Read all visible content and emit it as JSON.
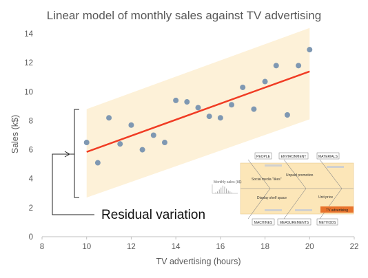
{
  "chart_data": {
    "type": "scatter",
    "title": "Linear model of monthly sales against TV advertising",
    "xlabel": "TV advertising (hours)",
    "ylabel": "Sales (k$)",
    "xlim": [
      8,
      22
    ],
    "ylim": [
      0,
      14
    ],
    "x_ticks": [
      8,
      10,
      12,
      14,
      16,
      18,
      20,
      22
    ],
    "y_ticks": [
      0,
      2,
      4,
      6,
      8,
      10,
      12,
      14
    ],
    "grid": false,
    "points": [
      {
        "x": 10.0,
        "y": 6.5
      },
      {
        "x": 10.5,
        "y": 5.1
      },
      {
        "x": 11.0,
        "y": 8.2
      },
      {
        "x": 11.5,
        "y": 6.4
      },
      {
        "x": 12.0,
        "y": 7.7
      },
      {
        "x": 12.5,
        "y": 6.0
      },
      {
        "x": 13.0,
        "y": 7.0
      },
      {
        "x": 13.5,
        "y": 6.5
      },
      {
        "x": 14.0,
        "y": 9.4
      },
      {
        "x": 14.5,
        "y": 9.3
      },
      {
        "x": 15.0,
        "y": 8.9
      },
      {
        "x": 15.5,
        "y": 8.3
      },
      {
        "x": 16.0,
        "y": 8.2
      },
      {
        "x": 16.5,
        "y": 9.1
      },
      {
        "x": 17.0,
        "y": 10.3
      },
      {
        "x": 17.5,
        "y": 8.8
      },
      {
        "x": 18.0,
        "y": 10.7
      },
      {
        "x": 18.5,
        "y": 11.8
      },
      {
        "x": 19.0,
        "y": 8.4
      },
      {
        "x": 19.5,
        "y": 11.8
      },
      {
        "x": 20.0,
        "y": 12.9
      }
    ],
    "fit_line": {
      "x": [
        10,
        20
      ],
      "y": [
        5.85,
        11.4
      ]
    },
    "prediction_band": {
      "x": [
        10,
        20
      ],
      "lower": [
        2.7,
        8.1
      ],
      "upper": [
        8.8,
        14.4
      ]
    },
    "annotation": "Residual variation",
    "point_color": "#7f98b2",
    "line_color": "#f03c24",
    "band_color": "#fdf1d8"
  },
  "fishbone": {
    "effect_label": "Monthly sales (k$)",
    "categories_top": [
      "PEOPLE",
      "ENVIRONMENT",
      "MATERIALS"
    ],
    "categories_bottom": [
      "MACHINES",
      "MEASUREMENTS",
      "METHODS"
    ],
    "causes": [
      "Social media \"likes\"",
      "Unpaid promotion",
      "Display shelf space",
      "Unit price",
      "TV advertising"
    ],
    "highlight_color": "#e8732c",
    "band_color": "#fce6b8"
  }
}
